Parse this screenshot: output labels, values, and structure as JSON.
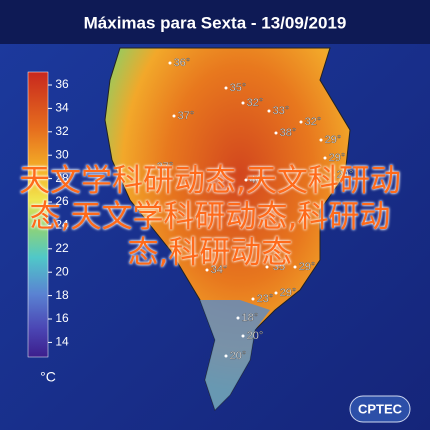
{
  "header": {
    "title": "Máximas para Sexta - 13/09/2019"
  },
  "colorbar": {
    "ticks": [
      "36",
      "34",
      "32",
      "30",
      "28",
      "26",
      "24",
      "22",
      "20",
      "18",
      "16",
      "14"
    ],
    "unit": "°C"
  },
  "map_labels": [
    "36°",
    "35°",
    "32°",
    "33°",
    "37°",
    "32°",
    "38°",
    "29°",
    "29°",
    "37°",
    "29°",
    "40°",
    "34°",
    "35",
    "29°",
    "23°",
    "29°",
    "18°",
    "20°",
    "20°"
  ],
  "overlay_text": "天文学科研动态,天文科研动态,天文学科研动态,科研动态,科研动态",
  "logo": "CPTEC"
}
